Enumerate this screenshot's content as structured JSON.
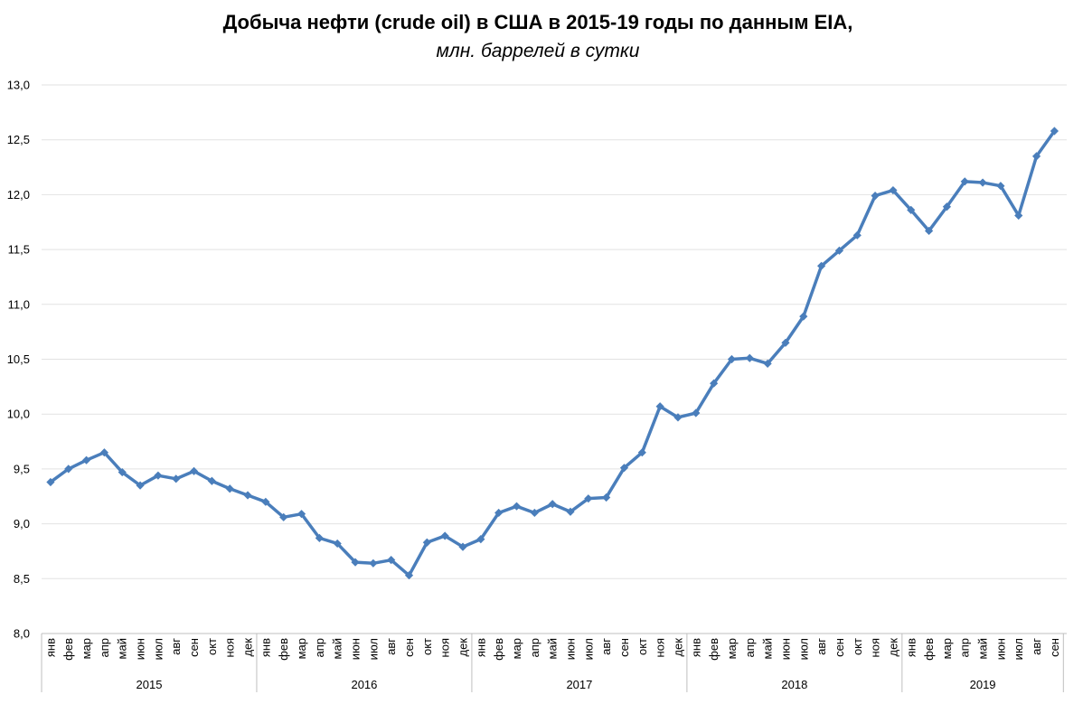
{
  "title_bold": "Добыча нефти (crude oil) в США в 2015-19 годы по данным EIA,",
  "title_italic": "млн. баррелей в сутки",
  "chart_data": {
    "type": "line",
    "title": "Добыча нефти (crude oil) в США в 2015-19 годы по данным EIA, млн. баррелей в сутки",
    "xlabel": "",
    "ylabel": "",
    "ylim": [
      8.0,
      13.0
    ],
    "yticks": [
      "8,0",
      "8,5",
      "9,0",
      "9,5",
      "10,0",
      "10,5",
      "11,0",
      "11,5",
      "12,0",
      "12,5",
      "13,0"
    ],
    "months": [
      "янв",
      "фев",
      "мар",
      "апр",
      "май",
      "июн",
      "июл",
      "авг",
      "сен",
      "окт",
      "ноя",
      "дек"
    ],
    "years": [
      "2015",
      "2016",
      "2017",
      "2018",
      "2019"
    ],
    "categories": [
      "янв 2015",
      "фев 2015",
      "мар 2015",
      "апр 2015",
      "май 2015",
      "июн 2015",
      "июл 2015",
      "авг 2015",
      "сен 2015",
      "окт 2015",
      "ноя 2015",
      "дек 2015",
      "янв 2016",
      "фев 2016",
      "мар 2016",
      "апр 2016",
      "май 2016",
      "июн 2016",
      "июл 2016",
      "авг 2016",
      "сен 2016",
      "окт 2016",
      "ноя 2016",
      "дек 2016",
      "янв 2017",
      "фев 2017",
      "мар 2017",
      "апр 2017",
      "май 2017",
      "июн 2017",
      "июл 2017",
      "авг 2017",
      "сен 2017",
      "окт 2017",
      "ноя 2017",
      "дек 2017",
      "янв 2018",
      "фев 2018",
      "мар 2018",
      "апр 2018",
      "май 2018",
      "июн 2018",
      "июл 2018",
      "авг 2018",
      "сен 2018",
      "окт 2018",
      "ноя 2018",
      "дек 2018",
      "янв 2019",
      "фев 2019",
      "мар 2019",
      "апр 2019",
      "май 2019",
      "июн 2019",
      "июл 2019",
      "авг 2019",
      "сен 2019"
    ],
    "series": [
      {
        "color": "#4a7ebb",
        "values": [
          9.38,
          9.5,
          9.58,
          9.65,
          9.47,
          9.35,
          9.44,
          9.41,
          9.48,
          9.39,
          9.32,
          9.26,
          9.2,
          9.06,
          9.09,
          8.87,
          8.82,
          8.65,
          8.64,
          8.67,
          8.53,
          8.83,
          8.89,
          8.79,
          8.86,
          9.1,
          9.16,
          9.1,
          9.18,
          9.11,
          9.23,
          9.24,
          9.51,
          9.65,
          10.07,
          9.97,
          10.01,
          10.28,
          10.5,
          10.51,
          10.46,
          10.65,
          10.89,
          11.35,
          11.49,
          11.63,
          11.99,
          12.04,
          11.86,
          11.67,
          11.89,
          12.12,
          12.11,
          12.08,
          11.81,
          12.35,
          12.58
        ]
      }
    ],
    "grid": true,
    "legend": "none"
  }
}
